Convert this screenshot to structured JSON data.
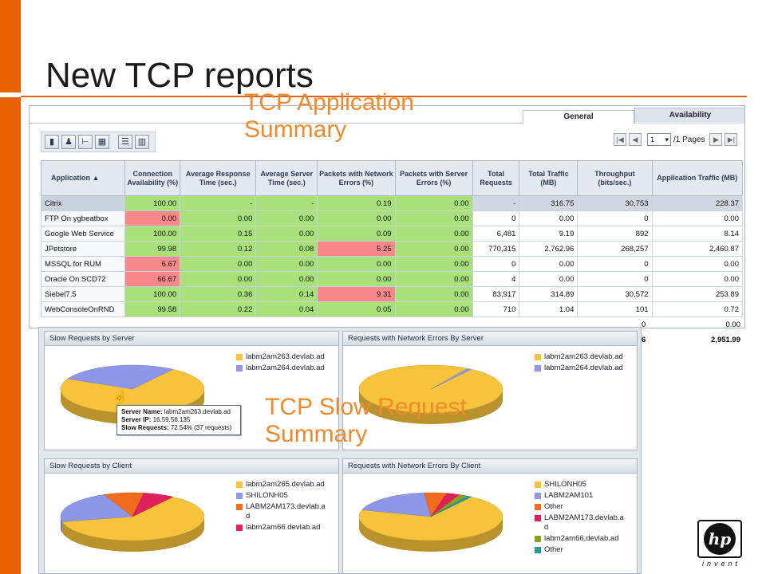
{
  "slide": {
    "title": "New TCP reports",
    "callout_top_line1": "TCP Application",
    "callout_top_line2": "Summary",
    "callout_bottom_line1": "TCP Slow Request",
    "callout_bottom_line2": "Summary"
  },
  "colors": {
    "accent": "#e86100",
    "callout": "#f08a2a",
    "good_cell": "#a8e07a",
    "bad_cell": "#f8888a"
  },
  "tabs": [
    {
      "label": "General",
      "active": true
    },
    {
      "label": "Availability",
      "active": false
    }
  ],
  "toolbar": {
    "icons": [
      "bar-chart-icon",
      "person-icon",
      "tree-icon",
      "table-icon",
      "grid-icon",
      "columns-icon"
    ]
  },
  "pager": {
    "page": "1",
    "pages_text": "/1 Pages"
  },
  "table": {
    "headers": [
      "Application ▲",
      "Connection Availability (%)",
      "Average Response Time (sec.)",
      "Average Server Time (sec.)",
      "Packets with Network Errors (%)",
      "Packets with Server Errors (%)",
      "Total Requests",
      "Total Traffic (MB)",
      "Throughput (bits/sec.)",
      "Application Traffic (MB)"
    ],
    "rows": [
      {
        "cells": [
          "Citrix",
          "100.00",
          "-",
          "-",
          "0.19",
          "0.00",
          "-",
          "316.75",
          "30,753",
          "228.37"
        ],
        "cls": [
          "app",
          "g",
          "g",
          "g",
          "g",
          "g",
          "w",
          "w",
          "w",
          "w"
        ],
        "selected": true
      },
      {
        "cells": [
          "FTP On ygbeatbox",
          "0.00",
          "0.00",
          "0.00",
          "0.00",
          "0.00",
          "0",
          "0.00",
          "0",
          "0.00"
        ],
        "cls": [
          "app",
          "r",
          "g",
          "g",
          "g",
          "g",
          "w",
          "w",
          "w",
          "w"
        ]
      },
      {
        "cells": [
          "Google Web Service",
          "100.00",
          "0.15",
          "0.00",
          "0.09",
          "0.00",
          "6,481",
          "9.19",
          "892",
          "8.14"
        ],
        "cls": [
          "app",
          "g",
          "g",
          "g",
          "g",
          "g",
          "w",
          "w",
          "w",
          "w"
        ]
      },
      {
        "cells": [
          "JPetstore",
          "99.98",
          "0.12",
          "0.08",
          "5.25",
          "0.00",
          "770,315",
          "2,762.96",
          "268,257",
          "2,460.87"
        ],
        "cls": [
          "app",
          "g",
          "g",
          "g",
          "r",
          "g",
          "w",
          "w",
          "w",
          "w"
        ]
      },
      {
        "cells": [
          "MSSQL for RUM",
          "6.67",
          "0.00",
          "0.00",
          "0.00",
          "0.00",
          "0",
          "0.00",
          "0",
          "0.00"
        ],
        "cls": [
          "app",
          "r",
          "g",
          "g",
          "g",
          "g",
          "w",
          "w",
          "w",
          "w"
        ]
      },
      {
        "cells": [
          "Oracle On SCD72",
          "66.67",
          "0.00",
          "0.00",
          "0.00",
          "0.00",
          "4",
          "0.00",
          "0",
          "0.00"
        ],
        "cls": [
          "app",
          "r",
          "g",
          "g",
          "g",
          "g",
          "w",
          "w",
          "w",
          "w"
        ]
      },
      {
        "cells": [
          "Siebel7.5",
          "100.00",
          "0.36",
          "0.14",
          "9.31",
          "0.00",
          "83,917",
          "314.89",
          "30,572",
          "253.89"
        ],
        "cls": [
          "app",
          "g",
          "g",
          "g",
          "r",
          "g",
          "w",
          "w",
          "w",
          "w"
        ]
      },
      {
        "cells": [
          "WebConsoleOnRND",
          "99.58",
          "0.22",
          "0.04",
          "0.05",
          "0.00",
          "710",
          "1.04",
          "101",
          "0.72"
        ],
        "cls": [
          "app",
          "g",
          "g",
          "g",
          "g",
          "g",
          "w",
          "w",
          "w",
          "w"
        ]
      }
    ],
    "overflow_rows": [
      {
        "left": "0",
        "right": "0.00"
      },
      {
        "left": "6",
        "right": "2,951.99"
      }
    ]
  },
  "panes": [
    {
      "title": "Slow Requests by Server",
      "legend": [
        {
          "label": "labm2am263.devlab.ad",
          "color": "#f6c33a"
        },
        {
          "label": "labm2am264.devlab.ad",
          "color": "#8e96e8"
        }
      ],
      "slices": [
        72.54,
        27.46
      ]
    },
    {
      "title": "Requests with Network Errors By Server",
      "legend": [
        {
          "label": "labm2am263.devlab.ad",
          "color": "#f6c33a"
        },
        {
          "label": "labm2am264.devlab.ad",
          "color": "#8e96e8"
        }
      ],
      "slices": [
        99,
        1
      ]
    },
    {
      "title": "Slow Requests by Client",
      "legend": [
        {
          "label": "labm2am265.devlab.ad",
          "color": "#f6c33a"
        },
        {
          "label": "SHILONH05",
          "color": "#8e96e8"
        },
        {
          "label": "LABM2AM173.devlab.ad",
          "color": "#f26a1c"
        },
        {
          "label": "labm2am66.devlab.ad",
          "color": "#e0205a"
        }
      ],
      "slices": [
        62,
        22,
        9,
        7
      ]
    },
    {
      "title": "Requests with Network Errors By Client",
      "legend": [
        {
          "label": "SHILONH05",
          "color": "#f6c33a"
        },
        {
          "label": "LABM2AM101",
          "color": "#8e96e8"
        },
        {
          "label": "Other",
          "color": "#f26a1c"
        },
        {
          "label": "LABM2AM173.devlab.ad",
          "color": "#e0205a"
        },
        {
          "label": "labm2am66.devlab.ad",
          "color": "#8aa020"
        },
        {
          "label": "Other",
          "color": "#2a9a9a"
        }
      ],
      "slices": [
        70,
        19,
        5,
        3,
        2,
        1
      ]
    }
  ],
  "tooltip": {
    "server_name_label": "Server Name:",
    "server_name": "labm2am263.devlab.ad",
    "server_ip_label": "Server IP:",
    "server_ip": "16.59.56.135",
    "slow_label": "Slow Requests:",
    "slow_value": "72.54% (37 requests)"
  },
  "logo": {
    "mark": "hp",
    "tagline": "invent"
  }
}
